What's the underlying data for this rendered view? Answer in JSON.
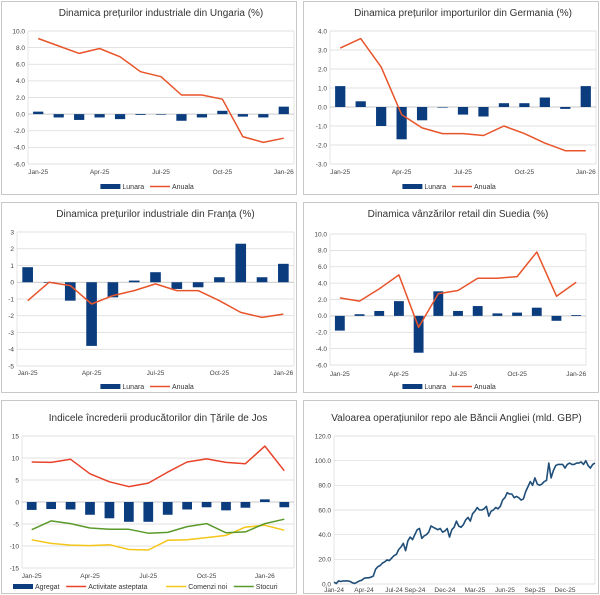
{
  "chart_data": [
    {
      "id": "hu",
      "type": "bar+line",
      "title": "Dinamica prețurilor industriale din Ungaria (%)",
      "x": [
        "Jan-25",
        "Feb-25",
        "Mar-25",
        "Apr-25",
        "May-25",
        "Jun-25",
        "Jul-25",
        "Aug-25",
        "Sep-25",
        "Oct-25",
        "Nov-25",
        "Dec-25",
        "Jan-26"
      ],
      "xtick_labels": [
        "Jan-25",
        "Apr-25",
        "Jul-25",
        "Oct-25",
        "Jan-26"
      ],
      "ylim": [
        -6,
        10
      ],
      "yticks": [
        -6,
        -4,
        -2,
        0,
        2,
        4,
        6,
        8,
        10
      ],
      "ytick_labels": [
        "-6.0",
        "-4.0",
        "-2.0",
        "0.0",
        "2.0",
        "4.0",
        "6.0",
        "8.0",
        "10.0"
      ],
      "grid": true,
      "legend": "bottom",
      "series": [
        {
          "name": "Lunara",
          "kind": "bar",
          "color": "#0b3d7e",
          "values": [
            0.3,
            -0.4,
            -0.7,
            -0.4,
            -0.6,
            -0.1,
            0.0,
            -0.8,
            -0.4,
            0.4,
            -0.3,
            -0.4,
            0.9
          ]
        },
        {
          "name": "Anuala",
          "kind": "line",
          "color": "#e8542a",
          "values": [
            9.1,
            8.2,
            7.3,
            7.9,
            6.9,
            5.1,
            4.5,
            2.3,
            2.3,
            1.8,
            -2.7,
            -3.4,
            -2.9
          ]
        }
      ]
    },
    {
      "id": "de",
      "type": "bar+line",
      "title": "Dinamica prețurilor importurilor din Germania (%)",
      "x": [
        "Jan-25",
        "Feb-25",
        "Mar-25",
        "Apr-25",
        "May-25",
        "Jun-25",
        "Jul-25",
        "Aug-25",
        "Sep-25",
        "Oct-25",
        "Nov-25",
        "Dec-25",
        "Jan-26"
      ],
      "xtick_labels": [
        "Jan-25",
        "Apr-25",
        "Jul-25",
        "Oct-25",
        "Jan-26"
      ],
      "ylim": [
        -3,
        4
      ],
      "yticks": [
        -3,
        -2,
        -1,
        0,
        1,
        2,
        3,
        4
      ],
      "ytick_labels": [
        "-3.0",
        "-2.0",
        "-1.0",
        "0.0",
        "1.0",
        "2.0",
        "3.0",
        "4.0"
      ],
      "grid": true,
      "legend": "bottom",
      "series": [
        {
          "name": "Lunara",
          "kind": "bar",
          "color": "#0b3d7e",
          "values": [
            1.1,
            0.3,
            -1.0,
            -1.7,
            -0.7,
            0.0,
            -0.4,
            -0.5,
            0.2,
            0.2,
            0.5,
            -0.1,
            1.1
          ]
        },
        {
          "name": "Anuala",
          "kind": "line",
          "color": "#e8542a",
          "values": [
            3.1,
            3.6,
            2.1,
            -0.4,
            -1.1,
            -1.4,
            -1.4,
            -1.5,
            -1.0,
            -1.4,
            -1.9,
            -2.3,
            -2.3
          ]
        }
      ]
    },
    {
      "id": "fr",
      "type": "bar+line",
      "title": "Dinamica prețurilor industriale din Franța (%)",
      "x": [
        "Jan-25",
        "Feb-25",
        "Mar-25",
        "Apr-25",
        "May-25",
        "Jun-25",
        "Jul-25",
        "Aug-25",
        "Sep-25",
        "Oct-25",
        "Nov-25",
        "Dec-25",
        "Jan-26"
      ],
      "xtick_labels": [
        "Jan-25",
        "Apr-25",
        "Jul-25",
        "Oct-25",
        "Jan-26"
      ],
      "ylim": [
        -5,
        3
      ],
      "yticks": [
        -5,
        -4,
        -3,
        -2,
        -1,
        0,
        1,
        2,
        3
      ],
      "ytick_labels": [
        "-5",
        "-4",
        "-3",
        "-2",
        "-1",
        "0",
        "1",
        "2",
        "3"
      ],
      "grid": true,
      "legend": "bottom",
      "series": [
        {
          "name": "Lunara",
          "kind": "bar",
          "color": "#0b3d7e",
          "values": [
            0.9,
            0.0,
            -1.1,
            -3.8,
            -0.9,
            0.1,
            0.6,
            -0.4,
            -0.3,
            0.3,
            2.3,
            0.3,
            1.1
          ]
        },
        {
          "name": "Anuala",
          "kind": "line",
          "color": "#e8542a",
          "values": [
            -1.1,
            0.0,
            -0.2,
            -1.3,
            -0.8,
            -0.5,
            -0.1,
            -0.5,
            -0.5,
            -1.1,
            -1.8,
            -2.1,
            -1.9
          ]
        }
      ]
    },
    {
      "id": "se",
      "type": "bar+line",
      "title": "Dinamica vânzărilor retail din Suedia (%)",
      "x": [
        "Jan-25",
        "Feb-25",
        "Mar-25",
        "Apr-25",
        "May-25",
        "Jun-25",
        "Jul-25",
        "Aug-25",
        "Sep-25",
        "Oct-25",
        "Nov-25",
        "Dec-25",
        "Jan-26"
      ],
      "xtick_labels": [
        "Jan-25",
        "Apr-25",
        "Jul-25",
        "Oct-25",
        "Jan-26"
      ],
      "ylim": [
        -6,
        10
      ],
      "yticks": [
        -6,
        -4,
        -2,
        0,
        2,
        4,
        6,
        8,
        10
      ],
      "ytick_labels": [
        "-6.0",
        "-4.0",
        "-2.0",
        "0.0",
        "2.0",
        "4.0",
        "6.0",
        "8.0",
        "10.0"
      ],
      "grid": true,
      "legend": "bottom",
      "series": [
        {
          "name": "Lunara",
          "kind": "bar",
          "color": "#0b3d7e",
          "values": [
            -1.8,
            0.2,
            0.6,
            1.8,
            -4.5,
            3.0,
            0.6,
            1.2,
            0.3,
            0.4,
            1.0,
            -0.6,
            0.1
          ]
        },
        {
          "name": "Anuala",
          "kind": "line",
          "color": "#e8542a",
          "values": [
            2.2,
            1.8,
            3.3,
            5.0,
            -1.4,
            2.7,
            3.1,
            4.6,
            4.6,
            4.8,
            7.8,
            2.4,
            4.1
          ]
        }
      ]
    },
    {
      "id": "nl",
      "type": "bar+line",
      "title": "Indicele încrederii producătorilor din Țările de Jos",
      "x": [
        "Jan-25",
        "Feb-25",
        "Mar-25",
        "Apr-25",
        "May-25",
        "Jun-25",
        "Jul-25",
        "Aug-25",
        "Sep-25",
        "Oct-25",
        "Nov-25",
        "Dec-25",
        "Jan-26",
        "Feb-26"
      ],
      "xtick_labels": [
        "Jan-25",
        "Apr-25",
        "Jul-25",
        "Oct-25",
        "Jan-26"
      ],
      "ylim": [
        -15,
        15
      ],
      "yticks": [
        -15,
        -10,
        -5,
        0,
        5,
        10,
        15
      ],
      "ytick_labels": [
        "-15",
        "-10",
        "-5",
        "0",
        "5",
        "10",
        "15"
      ],
      "grid": true,
      "legend": "bottom",
      "series": [
        {
          "name": "Agregat",
          "kind": "bar",
          "color": "#0b3d7e",
          "values": [
            -1.8,
            -1.6,
            -1.7,
            -2.9,
            -3.7,
            -4.5,
            -4.5,
            -2.9,
            -1.7,
            -1.2,
            -1.9,
            -1.3,
            0.6,
            -1.2
          ]
        },
        {
          "name": "Activitate asteptata",
          "kind": "line",
          "color": "#e8432a",
          "values": [
            9.1,
            9.0,
            9.7,
            6.4,
            4.6,
            3.5,
            4.3,
            6.8,
            9.1,
            9.8,
            9.0,
            8.7,
            12.7,
            7.1
          ]
        },
        {
          "name": "Comenzi noi",
          "kind": "line",
          "color": "#f5c518",
          "values": [
            -8.6,
            -9.4,
            -9.8,
            -9.9,
            -9.7,
            -10.8,
            -10.9,
            -8.7,
            -8.6,
            -8.1,
            -7.6,
            -5.7,
            -5.3,
            -6.4
          ]
        },
        {
          "name": "Stocuri",
          "kind": "line",
          "color": "#5a9a2a",
          "values": [
            -6.3,
            -4.3,
            -4.9,
            -5.9,
            -6.2,
            -6.2,
            -7.1,
            -6.9,
            -5.6,
            -4.9,
            -7.0,
            -6.8,
            -4.9,
            -3.9
          ]
        }
      ]
    },
    {
      "id": "uk",
      "type": "line",
      "title": "Valoarea operațiunilor repo ale Băncii Angliei (mld. GBP)",
      "xtick_labels": [
        "Jan-24",
        "Apr-24",
        "Jul-24",
        "Sep-24",
        "Dec-24",
        "Mar-25",
        "Jun-25",
        "Sep-25",
        "Dec-25"
      ],
      "ylim": [
        0,
        120
      ],
      "yticks": [
        0,
        20,
        40,
        60,
        80,
        100,
        120
      ],
      "ytick_labels": [
        "0.0",
        "20.0",
        "40.0",
        "60.0",
        "80.0",
        "100.0",
        "120.0"
      ],
      "grid": true,
      "legend": "none",
      "series": [
        {
          "name": "Repo",
          "kind": "line",
          "color": "#1f4e79",
          "values": [
            1.5,
            0.5,
            2.5,
            2.0,
            2.5,
            2.5,
            2.5,
            2.0,
            1.0,
            0.5,
            1.5,
            2.5,
            3.0,
            4.5,
            5.0,
            5.0,
            5.5,
            6.5,
            12,
            14,
            15,
            17,
            18,
            19.5,
            19,
            21,
            23,
            24,
            28,
            30,
            33,
            27,
            35,
            38,
            36,
            40,
            44,
            45,
            37,
            39,
            40,
            42,
            47,
            46,
            45,
            44,
            45,
            42,
            43,
            45,
            38,
            44,
            46,
            51,
            47,
            46,
            48,
            52,
            54,
            51,
            57,
            59,
            62,
            60,
            60,
            61,
            63,
            55,
            59,
            60,
            62,
            61,
            63,
            68,
            70,
            74,
            73,
            73,
            70,
            71,
            70,
            68,
            69,
            75,
            79,
            83,
            80,
            86,
            81,
            80,
            81,
            83,
            84,
            98,
            86,
            92,
            96,
            97,
            97,
            97,
            94,
            97,
            98,
            97,
            97,
            98,
            98,
            99,
            97,
            100,
            96,
            94,
            97,
            98
          ]
        }
      ]
    }
  ]
}
